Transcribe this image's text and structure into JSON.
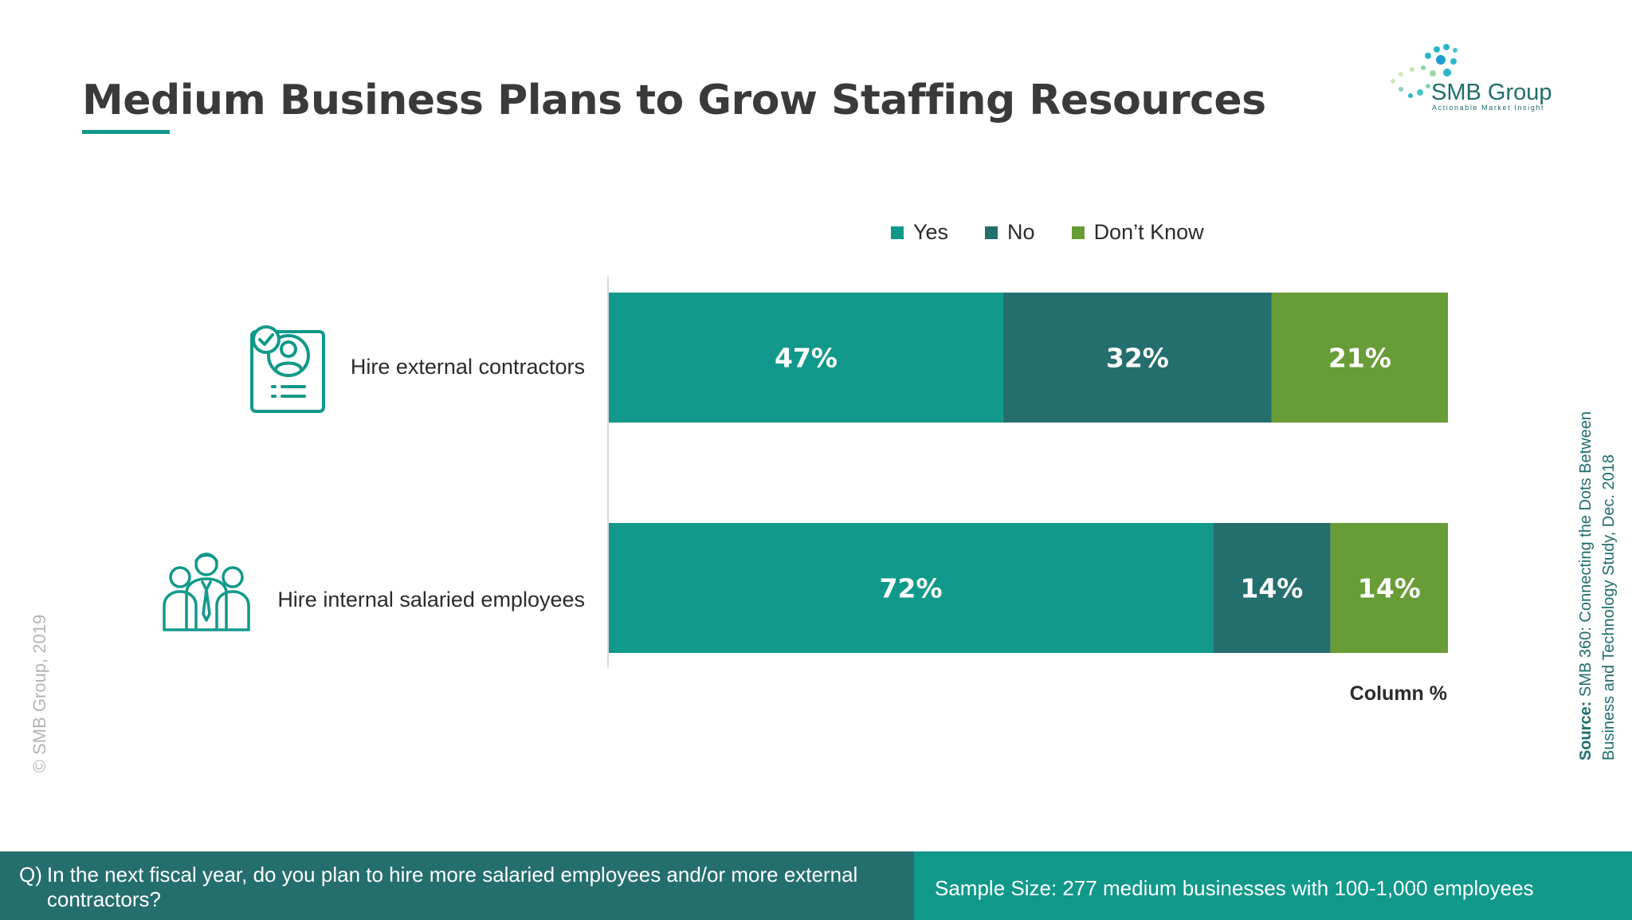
{
  "title": "Medium Business Plans to Grow Staffing Resources",
  "logo": {
    "name": "SMB Group",
    "tagline": "Actionable Market Insight"
  },
  "colors": {
    "yes": "#10998a",
    "no": "#256e6e",
    "dont_know": "#689c36",
    "accent": "#10998a"
  },
  "icons": {
    "contractor": "id-card-person-icon",
    "employees": "people-group-icon"
  },
  "chart_data": {
    "type": "bar",
    "orientation": "horizontal",
    "stacked": true,
    "categories": [
      "Hire external contractors",
      "Hire internal salaried employees"
    ],
    "series": [
      {
        "name": "Yes",
        "values": [
          47,
          72
        ],
        "labels": [
          "47%",
          "72%"
        ]
      },
      {
        "name": "No",
        "values": [
          32,
          14
        ],
        "labels": [
          "32%",
          "14%"
        ]
      },
      {
        "name": "Don’t Know",
        "values": [
          21,
          14
        ],
        "labels": [
          "21%",
          "14%"
        ]
      }
    ],
    "unit_note": "Column %",
    "legend": "top",
    "grid": false
  },
  "copyright": "© SMB Group, 2019",
  "source": {
    "label": "Source:",
    "line1": "SMB 360: Connecting the Dots Between",
    "line2": "Business and Technology  Study, Dec. 2018"
  },
  "footer": {
    "question_prefix": "Q)",
    "question": "In the next fiscal year, do you plan to hire more salaried employees and/or more external contractors?",
    "sample": "Sample Size: 277 medium businesses with 100-1,000 employees"
  }
}
